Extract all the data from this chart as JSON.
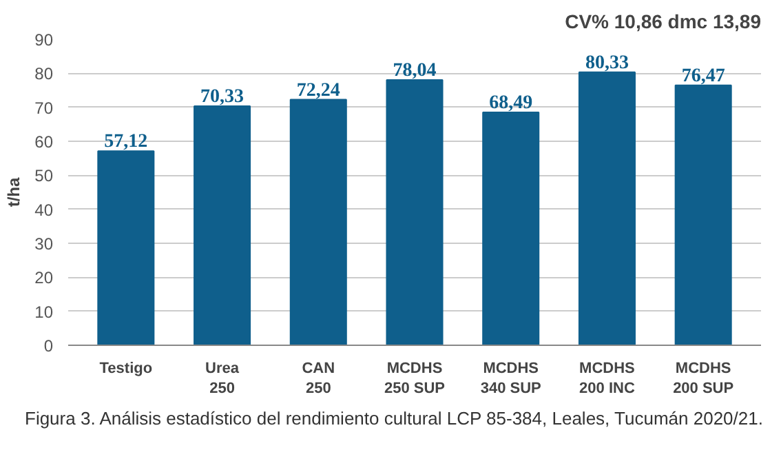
{
  "chart_data": {
    "type": "bar",
    "title": "CV% 10,86 dmc 13,89",
    "ylabel": "t/ha",
    "categories": [
      "Testigo",
      "Urea\n250",
      "CAN\n250",
      "MCDHS\n250 SUP",
      "MCDHS\n340 SUP",
      "MCDHS\n200 INC",
      "MCDHS\n200 SUP"
    ],
    "values": [
      57.12,
      70.33,
      72.24,
      78.04,
      68.49,
      80.33,
      76.47
    ],
    "value_labels": [
      "57,12",
      "70,33",
      "72,24",
      "78,04",
      "68,49",
      "80,33",
      "76,47"
    ],
    "color": "#0f5f8c",
    "ylim": [
      0,
      90
    ],
    "yticks": [
      0,
      10,
      20,
      30,
      40,
      50,
      60,
      70,
      80,
      90
    ],
    "grid": "y",
    "annotations": [
      "Figura 3. Análisis estadístico del rendimiento cultural LCP 85-384, Leales, Tucumán 2020/21."
    ]
  }
}
